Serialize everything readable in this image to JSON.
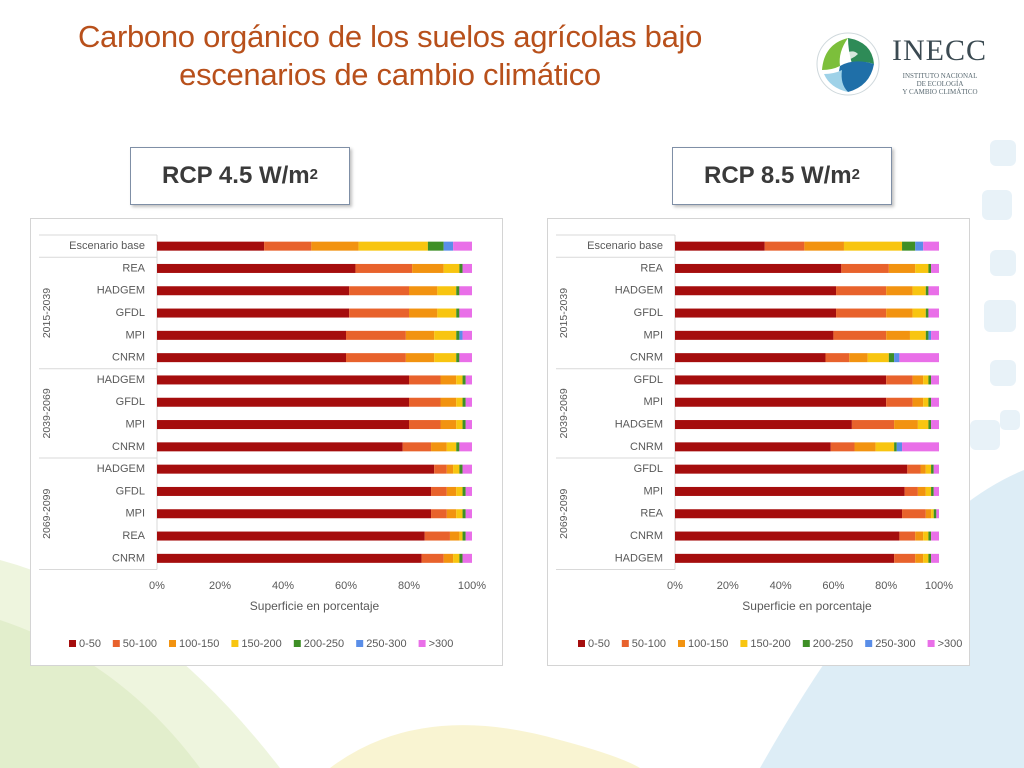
{
  "title": "Carbono orgánico de los suelos agrícolas bajo escenarios de cambio climático",
  "logo": {
    "name": "INECC",
    "subtitle": [
      "INSTITUTO NACIONAL",
      "DE ECOLOGÍA",
      "Y CAMBIO CLIMÁTICO"
    ]
  },
  "colors": {
    "title": "#b8501b",
    "series": [
      "#a50d0d",
      "#e8622c",
      "#f29310",
      "#f8c510",
      "#3e8f26",
      "#5a8ee8",
      "#e96fe8"
    ]
  },
  "panels": [
    {
      "label": "RCP 4.5 W/m",
      "label_sup": "2"
    },
    {
      "label": "RCP 8.5 W/m",
      "label_sup": "2"
    }
  ],
  "chart_data": [
    {
      "type": "bar",
      "orientation": "horizontal",
      "stacked": "percent",
      "title": "",
      "xlabel": "Superficie en porcentaje",
      "xlim": [
        0,
        100
      ],
      "xticks": [
        "0%",
        "20%",
        "40%",
        "60%",
        "80%",
        "100%"
      ],
      "legend_position": "bottom",
      "series_names": [
        "0-50",
        "50-100",
        "100-150",
        "150-200",
        "200-250",
        "250-300",
        ">300"
      ],
      "groups": [
        {
          "name": "",
          "start": 0,
          "count": 1
        },
        {
          "name": "2015-2039",
          "start": 1,
          "count": 5
        },
        {
          "name": "2039-2069",
          "start": 6,
          "count": 4
        },
        {
          "name": "2069-2099",
          "start": 10,
          "count": 5
        }
      ],
      "categories": [
        "Escenario base",
        "REA",
        "HADGEM",
        "GFDL",
        "MPI",
        "CNRM",
        "HADGEM",
        "GFDL",
        "MPI",
        "CNRM",
        "HADGEM",
        "GFDL",
        "MPI",
        "REA",
        "CNRM"
      ],
      "values": [
        [
          34,
          15,
          15,
          22,
          5,
          3,
          6
        ],
        [
          63,
          18,
          10,
          5,
          1,
          0,
          3
        ],
        [
          61,
          19,
          9,
          6,
          1,
          0,
          4
        ],
        [
          61,
          19,
          9,
          6,
          1,
          0,
          4
        ],
        [
          60,
          19,
          9,
          7,
          1,
          1,
          3
        ],
        [
          60,
          19,
          9,
          7,
          1,
          0,
          4
        ],
        [
          80,
          10,
          5,
          2,
          1,
          0,
          2
        ],
        [
          80,
          10,
          5,
          2,
          1,
          0,
          2
        ],
        [
          80,
          10,
          5,
          2,
          1,
          0,
          2
        ],
        [
          78,
          9,
          5,
          3,
          1,
          0,
          4
        ],
        [
          88,
          4,
          2,
          2,
          1,
          0,
          3
        ],
        [
          87,
          5,
          3,
          2,
          1,
          0,
          2
        ],
        [
          87,
          5,
          3,
          2,
          1,
          0,
          2
        ],
        [
          85,
          8,
          3,
          1,
          1,
          0,
          2
        ],
        [
          84,
          7,
          3,
          2,
          1,
          0,
          3
        ]
      ]
    },
    {
      "type": "bar",
      "orientation": "horizontal",
      "stacked": "percent",
      "title": "",
      "xlabel": "Superficie en porcentaje",
      "xlim": [
        0,
        100
      ],
      "xticks": [
        "0%",
        "20%",
        "40%",
        "60%",
        "80%",
        "100%"
      ],
      "legend_position": "bottom",
      "series_names": [
        "0-50",
        "50-100",
        "100-150",
        "150-200",
        "200-250",
        "250-300",
        ">300"
      ],
      "groups": [
        {
          "name": "",
          "start": 0,
          "count": 1
        },
        {
          "name": "2015-2039",
          "start": 1,
          "count": 5
        },
        {
          "name": "2039-2069",
          "start": 6,
          "count": 4
        },
        {
          "name": "2069-2099",
          "start": 10,
          "count": 5
        }
      ],
      "categories": [
        "Escenario base",
        "REA",
        "HADGEM",
        "GFDL",
        "MPI",
        "CNRM",
        "GFDL",
        "MPI",
        "HADGEM",
        "CNRM",
        "GFDL",
        "MPI",
        "REA",
        "CNRM",
        "HADGEM"
      ],
      "values": [
        [
          34,
          15,
          15,
          22,
          5,
          3,
          6
        ],
        [
          63,
          18,
          10,
          5,
          1,
          0,
          3
        ],
        [
          61,
          19,
          10,
          5,
          1,
          0,
          4
        ],
        [
          61,
          19,
          10,
          5,
          1,
          0,
          4
        ],
        [
          60,
          20,
          9,
          6,
          1,
          1,
          3
        ],
        [
          57,
          9,
          7,
          8,
          2,
          2,
          15
        ],
        [
          80,
          10,
          4,
          2,
          1,
          0,
          3
        ],
        [
          80,
          10,
          4,
          2,
          1,
          0,
          3
        ],
        [
          67,
          16,
          9,
          4,
          1,
          0,
          3
        ],
        [
          59,
          9,
          8,
          7,
          1,
          2,
          14
        ],
        [
          88,
          5,
          2,
          2,
          1,
          0,
          2
        ],
        [
          87,
          5,
          3,
          2,
          1,
          0,
          2
        ],
        [
          86,
          9,
          2,
          1,
          1,
          0,
          1
        ],
        [
          85,
          6,
          3,
          2,
          1,
          0,
          3
        ],
        [
          83,
          8,
          3,
          2,
          1,
          0,
          3
        ]
      ]
    }
  ]
}
